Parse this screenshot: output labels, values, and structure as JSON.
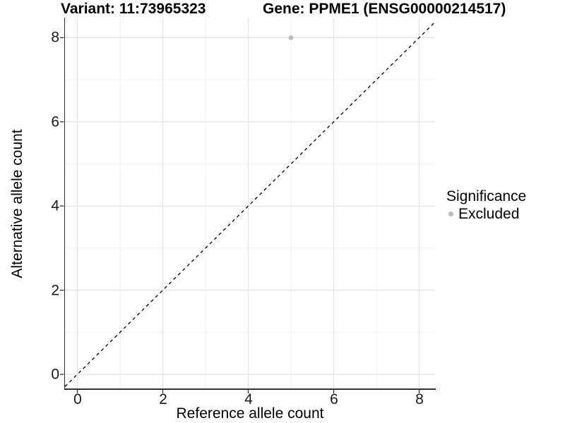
{
  "chart_data": {
    "type": "scatter",
    "titles": [
      "Variant: 11:73965323",
      "Gene: PPME1 (ENSG00000214517)"
    ],
    "xlabel": "Reference allele count",
    "ylabel": "Alternative allele count",
    "x_ticks": [
      0,
      2,
      4,
      6,
      8
    ],
    "y_ticks": [
      0,
      2,
      4,
      6,
      8
    ],
    "minor_ticks_x": [
      1,
      3,
      5,
      7
    ],
    "minor_ticks_y": [
      1,
      3,
      5,
      7
    ],
    "xlim": [
      -0.29,
      8.37
    ],
    "ylim": [
      -0.37,
      8.48
    ],
    "grid": "major+minor",
    "points": [
      {
        "x": 5,
        "y": 8,
        "series": "Excluded"
      }
    ],
    "reference_line": {
      "type": "identity y=x",
      "style": "dashed",
      "color": "#000000"
    },
    "legend": {
      "title": "Significance",
      "position": "right",
      "items": [
        {
          "label": "Excluded",
          "color": "#bdbdbd"
        }
      ]
    },
    "colors": {
      "point": "#bdbdbd",
      "grid_major": "#e2e2e2",
      "grid_minor": "#f0f0f0",
      "axis_line": "#333333",
      "background": "#ffffff"
    }
  }
}
